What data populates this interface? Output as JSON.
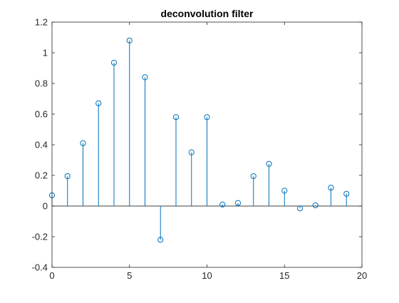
{
  "chart_data": {
    "type": "stem",
    "title": "deconvolution filter",
    "xlabel": "",
    "ylabel": "",
    "xlim": [
      0,
      20
    ],
    "ylim": [
      -0.4,
      1.2
    ],
    "x_ticks": [
      "0",
      "5",
      "10",
      "15",
      "20"
    ],
    "y_ticks": [
      "-0.4",
      "-0.2",
      "0",
      "0.2",
      "0.4",
      "0.6",
      "0.8",
      "1",
      "1.2"
    ],
    "grid": false,
    "baseline": 0,
    "color": "#0072BD",
    "marker": "circle-open",
    "series": [
      {
        "x": [
          0,
          1,
          2,
          3,
          4,
          5,
          6,
          7,
          8,
          9,
          10,
          11,
          12,
          13,
          14,
          15,
          16,
          17,
          18,
          19
        ],
        "values": [
          0.07,
          0.195,
          0.41,
          0.67,
          0.935,
          1.08,
          0.84,
          -0.22,
          0.58,
          0.35,
          0.58,
          0.01,
          0.02,
          0.195,
          0.275,
          0.1,
          -0.015,
          0.005,
          0.12,
          0.08
        ]
      }
    ]
  }
}
